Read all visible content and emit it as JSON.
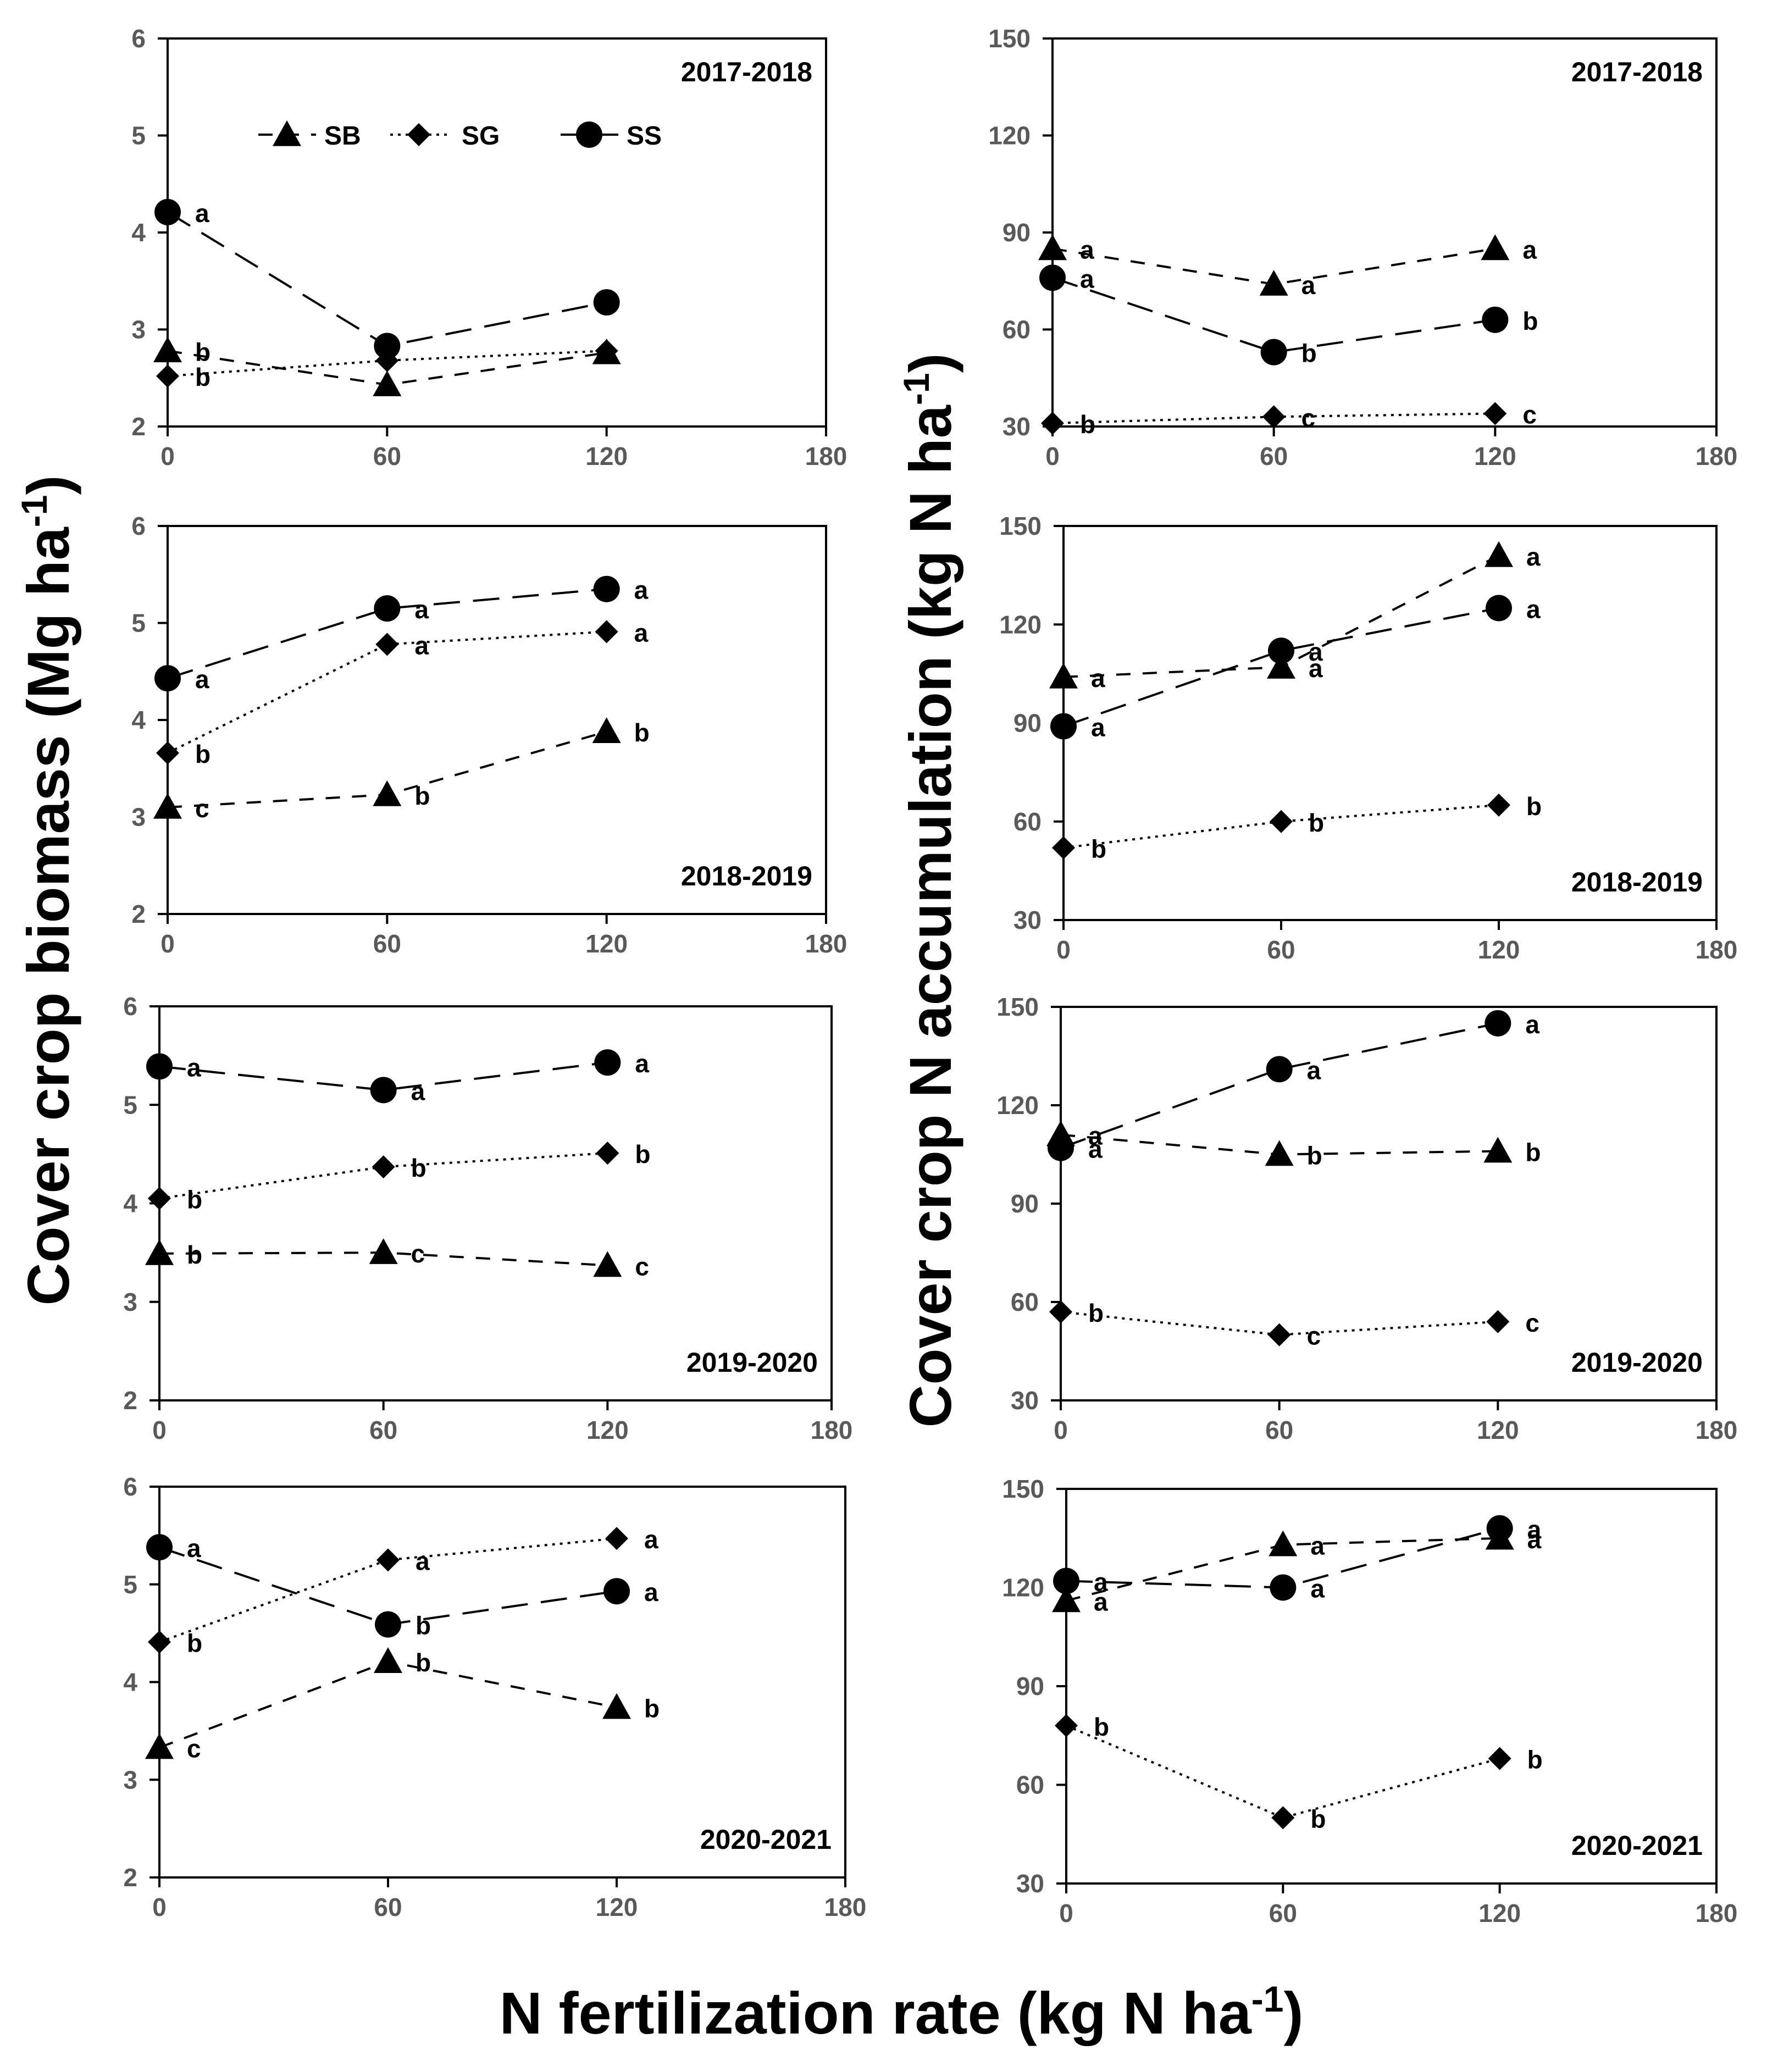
{
  "labels": {
    "x_label_main": "N fertilization rate (kg N ha",
    "x_label_sup": "-1",
    "x_label_close": ")",
    "y_left_main": "Cover crop biomass (Mg ha",
    "y_left_sup": "-1",
    "y_left_close": ")",
    "y_right_main": "Cover crop N accumulation (kg N ha",
    "y_right_sup": "-1",
    "y_right_close": ")"
  },
  "legend": [
    {
      "name": "SB",
      "marker": "triangle",
      "dash": "long-short"
    },
    {
      "name": "SG",
      "marker": "diamond",
      "dash": "dotted"
    },
    {
      "name": "SS",
      "marker": "circle",
      "dash": "long-dash"
    }
  ],
  "chart_data": [
    {
      "type": "line",
      "panel": "biomass-2017-2018",
      "season": "2017-2018",
      "x": [
        0,
        60,
        120
      ],
      "xlim": [
        0,
        180
      ],
      "xticks": [
        0,
        60,
        120,
        180
      ],
      "ylim": [
        2,
        6
      ],
      "yticks": [
        2,
        3,
        4,
        5,
        6
      ],
      "series": [
        {
          "name": "SB",
          "values": [
            2.78,
            2.43,
            2.76
          ],
          "letters": [
            "b",
            "",
            ""
          ]
        },
        {
          "name": "SG",
          "values": [
            2.52,
            2.68,
            2.78
          ],
          "letters": [
            "b",
            "",
            ""
          ]
        },
        {
          "name": "SS",
          "values": [
            4.21,
            2.83,
            3.28
          ],
          "letters": [
            "a",
            "",
            ""
          ]
        }
      ]
    },
    {
      "type": "line",
      "panel": "n-accumulation-2017-2018",
      "season": "2017-2018",
      "x": [
        0,
        60,
        120
      ],
      "xlim": [
        0,
        180
      ],
      "xticks": [
        0,
        60,
        120,
        180
      ],
      "ylim": [
        30,
        150
      ],
      "yticks": [
        30,
        60,
        90,
        120,
        150
      ],
      "series": [
        {
          "name": "SB",
          "values": [
            85,
            74,
            85
          ],
          "letters": [
            "a",
            "a",
            "a"
          ]
        },
        {
          "name": "SG",
          "values": [
            31,
            33,
            34
          ],
          "letters": [
            "b",
            "c",
            "c"
          ]
        },
        {
          "name": "SS",
          "values": [
            76,
            53,
            63
          ],
          "letters": [
            "a",
            "b",
            "b"
          ]
        }
      ]
    },
    {
      "type": "line",
      "panel": "biomass-2018-2019",
      "season": "2018-2019",
      "x": [
        0,
        60,
        120
      ],
      "xlim": [
        0,
        180
      ],
      "xticks": [
        0,
        60,
        120,
        180
      ],
      "ylim": [
        2,
        6
      ],
      "yticks": [
        2,
        3,
        4,
        5,
        6
      ],
      "series": [
        {
          "name": "SB",
          "values": [
            3.1,
            3.23,
            3.88
          ],
          "letters": [
            "c",
            "b",
            "b"
          ]
        },
        {
          "name": "SG",
          "values": [
            3.66,
            4.78,
            4.91
          ],
          "letters": [
            "b",
            "a",
            "a"
          ]
        },
        {
          "name": "SS",
          "values": [
            4.43,
            5.15,
            5.35
          ],
          "letters": [
            "a",
            "a",
            "a"
          ]
        }
      ]
    },
    {
      "type": "line",
      "panel": "n-accumulation-2018-2019",
      "season": "2018-2019",
      "x": [
        0,
        60,
        120
      ],
      "xlim": [
        0,
        180
      ],
      "xticks": [
        0,
        60,
        120,
        180
      ],
      "ylim": [
        30,
        150
      ],
      "yticks": [
        30,
        60,
        90,
        120,
        150
      ],
      "series": [
        {
          "name": "SB",
          "values": [
            104,
            107,
            141
          ],
          "letters": [
            "a",
            "a",
            "a"
          ]
        },
        {
          "name": "SG",
          "values": [
            52,
            60,
            65
          ],
          "letters": [
            "b",
            "b",
            "b"
          ]
        },
        {
          "name": "SS",
          "values": [
            89,
            112,
            125
          ],
          "letters": [
            "a",
            "a",
            "a"
          ]
        }
      ]
    },
    {
      "type": "line",
      "panel": "biomass-2019-2020",
      "season": "2019-2020",
      "x": [
        0,
        60,
        120
      ],
      "xlim": [
        0,
        180
      ],
      "xticks": [
        0,
        60,
        120,
        180
      ],
      "ylim": [
        2,
        6
      ],
      "yticks": [
        2,
        3,
        4,
        5,
        6
      ],
      "series": [
        {
          "name": "SB",
          "values": [
            3.49,
            3.5,
            3.37
          ],
          "letters": [
            "b",
            "c",
            "c"
          ]
        },
        {
          "name": "SG",
          "values": [
            4.05,
            4.37,
            4.51
          ],
          "letters": [
            "b",
            "b",
            "b"
          ]
        },
        {
          "name": "SS",
          "values": [
            5.39,
            5.15,
            5.43
          ],
          "letters": [
            "a",
            "a",
            "a"
          ]
        }
      ]
    },
    {
      "type": "line",
      "panel": "n-accumulation-2019-2020",
      "season": "2019-2020",
      "x": [
        0,
        60,
        120
      ],
      "xlim": [
        0,
        180
      ],
      "xticks": [
        0,
        60,
        120,
        180
      ],
      "ylim": [
        30,
        150
      ],
      "yticks": [
        30,
        60,
        90,
        120,
        150
      ],
      "series": [
        {
          "name": "SB",
          "values": [
            111,
            105,
            106
          ],
          "letters": [
            "a",
            "b",
            "b"
          ]
        },
        {
          "name": "SG",
          "values": [
            57,
            50,
            54
          ],
          "letters": [
            "b",
            "c",
            "c"
          ]
        },
        {
          "name": "SS",
          "values": [
            107,
            131,
            145
          ],
          "letters": [
            "a",
            "a",
            "a"
          ]
        }
      ]
    },
    {
      "type": "line",
      "panel": "biomass-2020-2021",
      "season": "2020-2021",
      "x": [
        0,
        60,
        120
      ],
      "xlim": [
        0,
        180
      ],
      "xticks": [
        0,
        60,
        120,
        180
      ],
      "ylim": [
        2,
        6
      ],
      "yticks": [
        2,
        3,
        4,
        5,
        6
      ],
      "series": [
        {
          "name": "SB",
          "values": [
            3.33,
            4.21,
            3.74
          ],
          "letters": [
            "c",
            "b",
            "b"
          ]
        },
        {
          "name": "SG",
          "values": [
            4.41,
            5.25,
            5.47
          ],
          "letters": [
            "b",
            "a",
            "a"
          ]
        },
        {
          "name": "SS",
          "values": [
            5.38,
            4.59,
            4.93
          ],
          "letters": [
            "a",
            "b",
            "a"
          ]
        }
      ]
    },
    {
      "type": "line",
      "panel": "n-accumulation-2020-2021",
      "season": "2020-2021",
      "x": [
        0,
        60,
        120
      ],
      "xlim": [
        0,
        180
      ],
      "xticks": [
        0,
        60,
        120,
        180
      ],
      "ylim": [
        30,
        150
      ],
      "yticks": [
        30,
        60,
        90,
        120,
        150
      ],
      "series": [
        {
          "name": "SB",
          "values": [
            116,
            133,
            135
          ],
          "letters": [
            "a",
            "a",
            "a"
          ]
        },
        {
          "name": "SG",
          "values": [
            78,
            50,
            68
          ],
          "letters": [
            "b",
            "b",
            "b"
          ]
        },
        {
          "name": "SS",
          "values": [
            122,
            120,
            138
          ],
          "letters": [
            "a",
            "a",
            "a"
          ]
        }
      ]
    }
  ]
}
